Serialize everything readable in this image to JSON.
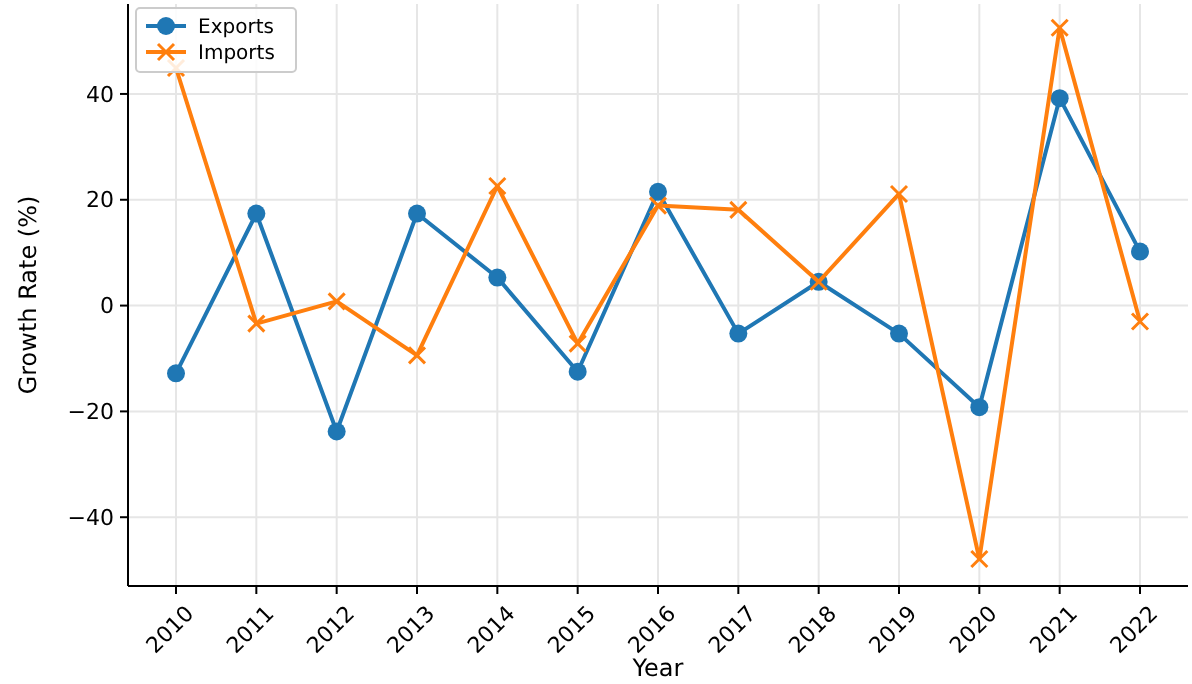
{
  "chart_data": {
    "type": "line",
    "xlabel": "Year",
    "ylabel": "Growth Rate (%)",
    "categories": [
      "2010",
      "2011",
      "2012",
      "2013",
      "2014",
      "2015",
      "2016",
      "2017",
      "2018",
      "2019",
      "2020",
      "2021",
      "2022"
    ],
    "series": [
      {
        "name": "Exports",
        "color": "#1f77b4",
        "marker": "circle",
        "values": [
          -12.8,
          17.4,
          -23.8,
          17.4,
          5.3,
          -12.5,
          21.5,
          -5.3,
          4.5,
          -5.3,
          -19.2,
          39.2,
          10.2
        ]
      },
      {
        "name": "Imports",
        "color": "#ff7f0e",
        "marker": "cross",
        "values": [
          44.9,
          -3.4,
          0.8,
          -9.4,
          22.6,
          -7.2,
          18.9,
          18.1,
          4.5,
          21.1,
          -47.9,
          52.5,
          -3.0
        ]
      }
    ],
    "ylim": [
      -53,
      57
    ],
    "yticks": [
      -40,
      -20,
      0,
      20,
      40
    ],
    "grid": true,
    "legend": "top left",
    "line_style": "solid"
  }
}
